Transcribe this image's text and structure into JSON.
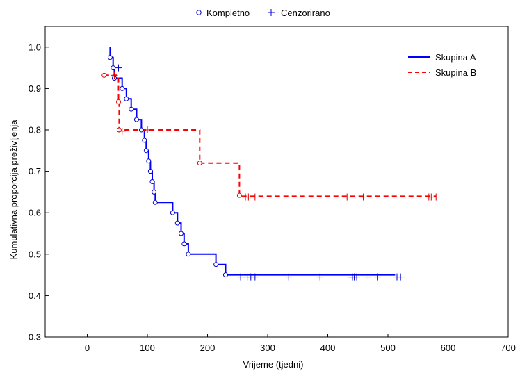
{
  "chart_data": {
    "type": "line",
    "xlabel": "Vrijeme (tjedni)",
    "ylabel": "Kumulativna proporcija preživljenja",
    "xlim": [
      -70,
      700
    ],
    "ylim": [
      0.3,
      1.05
    ],
    "xticks": [
      0,
      100,
      200,
      300,
      400,
      500,
      600,
      700
    ],
    "yticks": [
      0.3,
      0.4,
      0.5,
      0.6,
      0.7,
      0.8,
      0.9,
      1.0
    ],
    "xtick_labels": [
      "0",
      "100",
      "200",
      "300",
      "400",
      "500",
      "600",
      "700"
    ],
    "ytick_labels": [
      "0.3",
      "0.4",
      "0.5",
      "0.6",
      "0.7",
      "0.8",
      "0.9",
      "1.0"
    ],
    "grid": false,
    "marker_legend": {
      "position": "top-center",
      "complete_label": "Kompletno",
      "censored_label": "Cenzorirano"
    },
    "series_legend": {
      "position": "top-right",
      "entries": [
        "Skupina A",
        "Skupina B"
      ]
    },
    "series": [
      {
        "name": "Skupina A",
        "color": "#0000ff",
        "line_style": "solid",
        "step_points": [
          [
            38,
            1.0
          ],
          [
            38,
            0.975
          ],
          [
            43,
            0.975
          ],
          [
            43,
            0.95
          ],
          [
            45,
            0.95
          ],
          [
            45,
            0.925
          ],
          [
            58,
            0.925
          ],
          [
            58,
            0.9
          ],
          [
            65,
            0.9
          ],
          [
            65,
            0.875
          ],
          [
            73,
            0.875
          ],
          [
            73,
            0.85
          ],
          [
            82,
            0.85
          ],
          [
            82,
            0.825
          ],
          [
            90,
            0.825
          ],
          [
            90,
            0.8
          ],
          [
            95,
            0.8
          ],
          [
            95,
            0.775
          ],
          [
            98,
            0.775
          ],
          [
            98,
            0.75
          ],
          [
            102,
            0.75
          ],
          [
            102,
            0.725
          ],
          [
            105,
            0.725
          ],
          [
            105,
            0.7
          ],
          [
            108,
            0.7
          ],
          [
            108,
            0.675
          ],
          [
            111,
            0.675
          ],
          [
            111,
            0.65
          ],
          [
            113,
            0.65
          ],
          [
            113,
            0.625
          ],
          [
            142,
            0.625
          ],
          [
            142,
            0.6
          ],
          [
            150,
            0.6
          ],
          [
            150,
            0.575
          ],
          [
            156,
            0.575
          ],
          [
            156,
            0.55
          ],
          [
            161,
            0.55
          ],
          [
            161,
            0.525
          ],
          [
            168,
            0.525
          ],
          [
            168,
            0.5
          ],
          [
            214,
            0.5
          ],
          [
            214,
            0.475
          ],
          [
            230,
            0.475
          ],
          [
            230,
            0.45
          ],
          [
            512,
            0.45
          ]
        ],
        "complete_points": [
          [
            38,
            0.975
          ],
          [
            43,
            0.95
          ],
          [
            45,
            0.925
          ],
          [
            58,
            0.9
          ],
          [
            65,
            0.875
          ],
          [
            73,
            0.85
          ],
          [
            82,
            0.825
          ],
          [
            90,
            0.8
          ],
          [
            95,
            0.775
          ],
          [
            98,
            0.75
          ],
          [
            102,
            0.725
          ],
          [
            105,
            0.7
          ],
          [
            108,
            0.675
          ],
          [
            111,
            0.65
          ],
          [
            113,
            0.625
          ],
          [
            142,
            0.6
          ],
          [
            150,
            0.575
          ],
          [
            156,
            0.55
          ],
          [
            161,
            0.525
          ],
          [
            168,
            0.5
          ],
          [
            214,
            0.475
          ],
          [
            230,
            0.45
          ]
        ],
        "censored_points": [
          [
            52,
            0.95
          ],
          [
            255,
            0.445
          ],
          [
            266,
            0.445
          ],
          [
            272,
            0.445
          ],
          [
            279,
            0.445
          ],
          [
            335,
            0.445
          ],
          [
            387,
            0.445
          ],
          [
            437,
            0.445
          ],
          [
            441,
            0.445
          ],
          [
            444,
            0.445
          ],
          [
            448,
            0.445
          ],
          [
            467,
            0.445
          ],
          [
            483,
            0.445
          ],
          [
            515,
            0.445
          ],
          [
            521,
            0.445
          ]
        ]
      },
      {
        "name": "Skupina B",
        "color": "#ff0000",
        "line_style": "dashed",
        "step_points": [
          [
            28,
            0.932
          ],
          [
            28,
            0.932
          ],
          [
            52,
            0.932
          ],
          [
            52,
            0.868
          ],
          [
            53,
            0.868
          ],
          [
            53,
            0.8
          ],
          [
            187,
            0.8
          ],
          [
            187,
            0.72
          ],
          [
            253,
            0.72
          ],
          [
            253,
            0.64
          ],
          [
            580,
            0.64
          ]
        ],
        "complete_points": [
          [
            28,
            0.932
          ],
          [
            52,
            0.868
          ],
          [
            53,
            0.8
          ],
          [
            187,
            0.72
          ],
          [
            253,
            0.642
          ]
        ],
        "censored_points": [
          [
            45,
            0.932
          ],
          [
            58,
            0.797
          ],
          [
            100,
            0.8
          ],
          [
            263,
            0.638
          ],
          [
            268,
            0.638
          ],
          [
            279,
            0.638
          ],
          [
            432,
            0.638
          ],
          [
            459,
            0.638
          ],
          [
            568,
            0.638
          ],
          [
            572,
            0.638
          ],
          [
            580,
            0.638
          ]
        ]
      }
    ]
  }
}
